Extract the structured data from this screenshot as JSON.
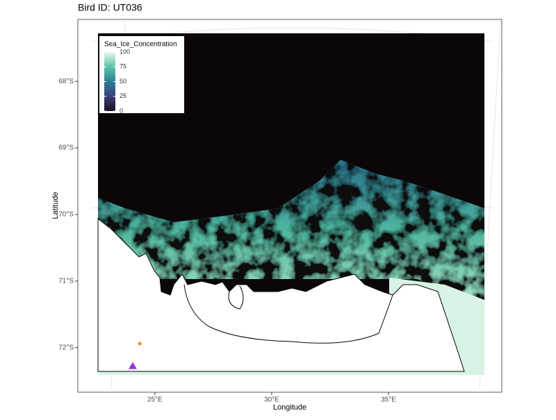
{
  "chart_data": {
    "type": "map",
    "title": "Bird ID: UT036",
    "x_label": "Longitude",
    "y_label": "Latitude",
    "xlim": [
      21.7,
      39.85
    ],
    "ylim": [
      -72.67,
      -67.07
    ],
    "xticks": [
      {
        "value": 25,
        "label": "25°E"
      },
      {
        "value": 30,
        "label": "30°E"
      },
      {
        "value": 35,
        "label": "35°E"
      }
    ],
    "yticks": [
      {
        "value": -68,
        "label": "68°S"
      },
      {
        "value": -69,
        "label": "69°S"
      },
      {
        "value": -70,
        "label": "70°S"
      },
      {
        "value": -71,
        "label": "71°S"
      },
      {
        "value": -72,
        "label": "72°S"
      }
    ],
    "legend": {
      "title": "Sea_Ice_Concentration",
      "lim": [
        0,
        100
      ],
      "ticks": [
        0,
        25,
        50,
        75,
        100
      ],
      "colors": [
        "#1c0f24",
        "#3b3f7a",
        "#2f7f93",
        "#5cc3a8",
        "#e3f8ec"
      ]
    },
    "points": [
      {
        "x": 24.35,
        "y": -71.94,
        "shape": "circle",
        "color": "#f28e1c"
      },
      {
        "x": 24.05,
        "y": -72.27,
        "shape": "triangle",
        "color": "#9b30e0"
      }
    ]
  }
}
